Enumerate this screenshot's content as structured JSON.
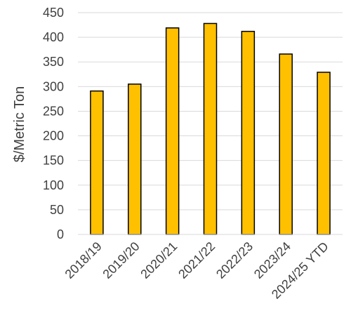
{
  "chart_data": {
    "type": "bar",
    "title": "",
    "xlabel": "",
    "ylabel": "$/Metric Ton",
    "categories": [
      "2018/19",
      "2019/20",
      "2020/21",
      "2021/22",
      "2022/23",
      "2023/24",
      "2024/25 YTD"
    ],
    "values": [
      291,
      305,
      419,
      428,
      412,
      366,
      329
    ],
    "ylim": [
      0,
      450
    ],
    "yticks": [
      0,
      50,
      100,
      150,
      200,
      250,
      300,
      350,
      400,
      450
    ],
    "grid": true,
    "legend": "none",
    "bar_color": "#FFC000",
    "bar_edge_color": "#000000",
    "grid_color": "#D9D9D9",
    "text_color": "#404040"
  }
}
